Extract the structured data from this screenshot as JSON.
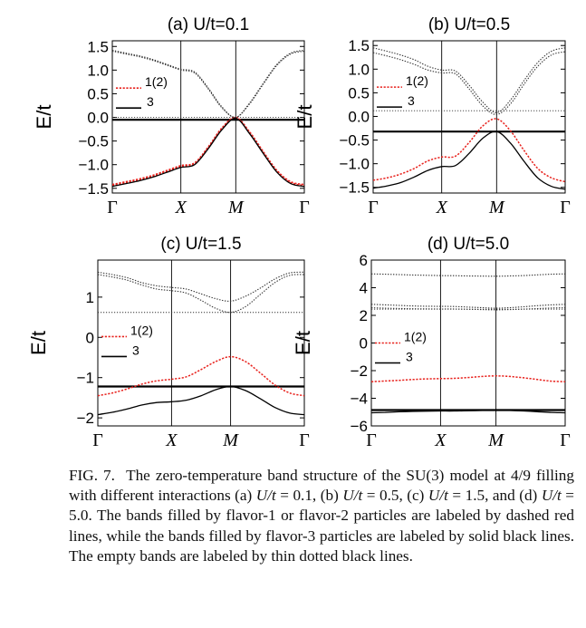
{
  "figure": {
    "caption": {
      "label": "FIG. 7.",
      "text_a": "The zero-temperature band structure of the SU(3) model at 4/9 filling with different interactions (a) ",
      "u_a": "U/t",
      "val_a": " = 0.1, (b) ",
      "u_b": "U/t",
      "val_b": " = 0.5, (c) ",
      "u_c": "U/t",
      "val_c": " = 1.5, and (d) ",
      "u_d": "U/t",
      "text_end": " = 5.0. The bands filled by flavor-1 or flavor-2 particles are labeled by dashed red lines, while the bands filled by flavor-3 particles are labeled by solid black lines. The empty bands are labeled by thin dotted black lines."
    },
    "colors": {
      "filled12": "#e8231e",
      "filled3": "#000000",
      "empty": "#333333"
    }
  },
  "chart_data": [
    {
      "type": "line",
      "title": "(a) U/t=0.1",
      "ylabel": "E/t",
      "xlabel": "",
      "x_tick_labels": [
        "Γ",
        "X",
        "M",
        "Γ"
      ],
      "y_ticks": [
        1.5,
        1.0,
        0.5,
        0.0,
        -0.5,
        -1.0,
        -1.5
      ],
      "y_tick_labels": [
        "1.5",
        "1.0",
        "0.5",
        "0.0",
        "−0.5",
        "−1.0",
        "−1.5"
      ],
      "ylim": [
        -1.6,
        1.62
      ],
      "legend": [
        "1(2)",
        "3"
      ],
      "fermi_level": -0.05,
      "empty_level": 0.0,
      "bands": [
        {
          "name": "1(2)",
          "kind": "filled12",
          "values": [
            -1.42,
            -1.36,
            -1.3,
            -1.22,
            -1.12,
            -1.02,
            -0.96,
            -0.62,
            -0.22,
            0.0,
            -0.3,
            -0.72,
            -1.12,
            -1.36,
            -1.42
          ]
        },
        {
          "name": "1(2)",
          "kind": "filled12",
          "values": [
            -1.44,
            -1.38,
            -1.32,
            -1.24,
            -1.14,
            -1.04,
            -0.98,
            -0.64,
            -0.24,
            0.0,
            -0.32,
            -0.74,
            -1.14,
            -1.38,
            -1.44
          ]
        },
        {
          "name": "3",
          "kind": "filled3",
          "values": [
            -1.46,
            -1.4,
            -1.34,
            -1.26,
            -1.16,
            -1.06,
            -1.0,
            -0.66,
            -0.26,
            -0.02,
            -0.34,
            -0.76,
            -1.16,
            -1.4,
            -1.46
          ]
        },
        {
          "name": "empty",
          "kind": "empty",
          "values": [
            1.42,
            1.36,
            1.3,
            1.22,
            1.12,
            1.02,
            0.96,
            0.62,
            0.22,
            0.0,
            0.3,
            0.72,
            1.12,
            1.36,
            1.42
          ]
        },
        {
          "name": "empty",
          "kind": "empty",
          "values": [
            1.4,
            1.34,
            1.28,
            1.2,
            1.1,
            1.0,
            0.94,
            0.6,
            0.2,
            0.0,
            0.28,
            0.7,
            1.1,
            1.34,
            1.4
          ]
        }
      ]
    },
    {
      "type": "line",
      "title": "(b) U/t=0.5",
      "ylabel": "E/t",
      "xlabel": "",
      "x_tick_labels": [
        "Γ",
        "X",
        "M",
        "Γ"
      ],
      "y_ticks": [
        1.5,
        1.0,
        0.5,
        0.0,
        -0.5,
        -1.0,
        -1.5
      ],
      "y_tick_labels": [
        "1.5",
        "1.0",
        "0.5",
        "0.0",
        "−0.5",
        "−1.0",
        "−1.5"
      ],
      "ylim": [
        -1.62,
        1.6
      ],
      "legend": [
        "1(2)",
        "3"
      ],
      "fermi_level": -0.32,
      "empty_level": 0.12,
      "bands": [
        {
          "name": "1(2)",
          "kind": "filled12",
          "values": [
            -1.35,
            -1.3,
            -1.22,
            -1.1,
            -0.94,
            -0.86,
            -0.84,
            -0.55,
            -0.2,
            -0.05,
            -0.3,
            -0.72,
            -1.1,
            -1.3,
            -1.38
          ]
        },
        {
          "name": "3",
          "kind": "filled3",
          "values": [
            -1.52,
            -1.47,
            -1.4,
            -1.28,
            -1.14,
            -1.06,
            -1.04,
            -0.78,
            -0.46,
            -0.32,
            -0.56,
            -0.95,
            -1.3,
            -1.48,
            -1.54
          ]
        },
        {
          "name": "empty",
          "kind": "empty",
          "values": [
            1.45,
            1.38,
            1.3,
            1.2,
            1.06,
            0.98,
            0.96,
            0.66,
            0.3,
            0.08,
            0.34,
            0.76,
            1.14,
            1.38,
            1.45
          ]
        },
        {
          "name": "empty",
          "kind": "empty",
          "values": [
            1.35,
            1.28,
            1.2,
            1.1,
            0.98,
            0.92,
            0.9,
            0.58,
            0.22,
            0.04,
            0.26,
            0.68,
            1.06,
            1.3,
            1.37
          ]
        }
      ]
    },
    {
      "type": "line",
      "title": "(c) U/t=1.5",
      "ylabel": "E/t",
      "xlabel": "",
      "x_tick_labels": [
        "Γ",
        "X",
        "M",
        "Γ"
      ],
      "y_ticks": [
        1,
        0,
        -1,
        -2
      ],
      "y_tick_labels": [
        "1",
        "0",
        "−1",
        "−2"
      ],
      "ylim": [
        -2.2,
        1.92
      ],
      "legend": [
        "1(2)",
        "3"
      ],
      "fermi_level": -1.22,
      "empty_level": 0.62,
      "bands": [
        {
          "name": "1(2)",
          "kind": "filled12",
          "values": [
            -1.45,
            -1.38,
            -1.28,
            -1.16,
            -1.08,
            -1.04,
            -0.98,
            -0.8,
            -0.6,
            -0.48,
            -0.6,
            -0.88,
            -1.18,
            -1.38,
            -1.45
          ]
        },
        {
          "name": "3",
          "kind": "filled3",
          "values": [
            -1.92,
            -1.86,
            -1.78,
            -1.68,
            -1.62,
            -1.6,
            -1.56,
            -1.45,
            -1.3,
            -1.22,
            -1.32,
            -1.52,
            -1.74,
            -1.88,
            -1.92
          ]
        },
        {
          "name": "empty",
          "kind": "empty",
          "values": [
            1.62,
            1.56,
            1.48,
            1.36,
            1.28,
            1.24,
            1.2,
            1.08,
            0.96,
            0.9,
            1.02,
            1.22,
            1.45,
            1.6,
            1.62
          ]
        },
        {
          "name": "empty",
          "kind": "empty",
          "values": [
            1.56,
            1.5,
            1.42,
            1.3,
            1.2,
            1.16,
            1.1,
            0.92,
            0.72,
            0.62,
            0.76,
            1.06,
            1.36,
            1.54,
            1.56
          ]
        }
      ]
    },
    {
      "type": "line",
      "title": "(d) U/t=5.0",
      "ylabel": "E/t",
      "xlabel": "",
      "x_tick_labels": [
        "Γ",
        "X",
        "M",
        "Γ"
      ],
      "y_ticks": [
        6,
        4,
        2,
        0,
        -2,
        -4,
        -6
      ],
      "y_tick_labels": [
        "6",
        "4",
        "2",
        "0",
        "−2",
        "−4",
        "−6"
      ],
      "ylim": [
        -6.0,
        6.0
      ],
      "legend": [
        "1(2)",
        "3"
      ],
      "fermi_level": -4.85,
      "empty_level": 2.45,
      "bands": [
        {
          "name": "1(2)",
          "kind": "filled12",
          "values": [
            -2.8,
            -2.75,
            -2.7,
            -2.64,
            -2.6,
            -2.58,
            -2.56,
            -2.5,
            -2.42,
            -2.38,
            -2.42,
            -2.52,
            -2.64,
            -2.76,
            -2.8
          ]
        },
        {
          "name": "3",
          "kind": "filled3",
          "values": [
            -5.05,
            -5.02,
            -4.98,
            -4.95,
            -4.93,
            -4.92,
            -4.92,
            -4.9,
            -4.88,
            -4.86,
            -4.88,
            -4.92,
            -4.97,
            -5.02,
            -5.05
          ]
        },
        {
          "name": "empty",
          "kind": "empty",
          "values": [
            5.0,
            4.98,
            4.95,
            4.92,
            4.9,
            4.88,
            4.87,
            4.85,
            4.84,
            4.83,
            4.85,
            4.88,
            4.93,
            4.98,
            5.0
          ]
        },
        {
          "name": "empty",
          "kind": "empty",
          "values": [
            2.8,
            2.76,
            2.72,
            2.68,
            2.66,
            2.65,
            2.64,
            2.6,
            2.56,
            2.52,
            2.56,
            2.62,
            2.7,
            2.76,
            2.8
          ]
        },
        {
          "name": "empty",
          "kind": "empty",
          "values": [
            2.55,
            2.52,
            2.5,
            2.48,
            2.47,
            2.46,
            2.46,
            2.44,
            2.42,
            2.4,
            2.42,
            2.45,
            2.49,
            2.53,
            2.55
          ]
        }
      ]
    }
  ]
}
